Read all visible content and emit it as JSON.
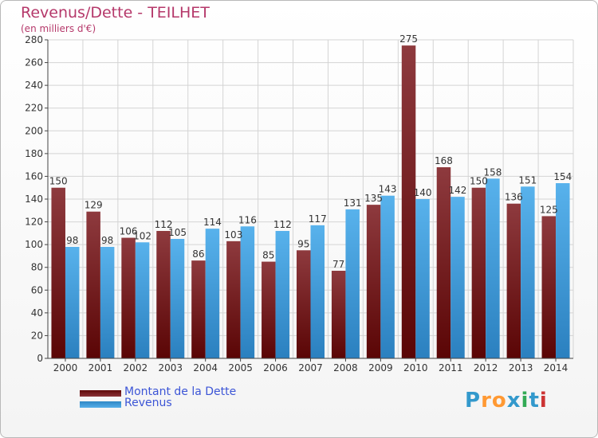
{
  "title": "Revenus/Dette - TEILHET",
  "subtitle": "(en milliers d'€)",
  "legend": {
    "dette_label": "Montant de la Dette",
    "revenus_label": "Revenus"
  },
  "logo": {
    "text": "Proxiti",
    "colors": [
      "#3399cc",
      "#ff9933",
      "#ff9933",
      "#3399cc",
      "#33aa55",
      "#3399cc",
      "#cc3333"
    ]
  },
  "colors": {
    "dette": "#7a1f24",
    "revenus": "#4aa3df",
    "title": "#b5386a",
    "legend_text": "#3c55d6"
  },
  "chart_data": {
    "type": "bar",
    "title": "Revenus/Dette - TEILHET",
    "subtitle": "(en milliers d'€)",
    "categories": [
      "2000",
      "2001",
      "2002",
      "2003",
      "2004",
      "2005",
      "2006",
      "2007",
      "2008",
      "2009",
      "2010",
      "2011",
      "2012",
      "2013",
      "2014"
    ],
    "series": [
      {
        "name": "Montant de la Dette",
        "values": [
          150,
          129,
          106,
          112,
          86,
          103,
          85,
          95,
          77,
          135,
          275,
          168,
          150,
          136,
          125
        ]
      },
      {
        "name": "Revenus",
        "values": [
          98,
          98,
          102,
          105,
          114,
          116,
          112,
          117,
          131,
          143,
          140,
          142,
          158,
          151,
          154
        ]
      }
    ],
    "ylim": [
      0,
      280
    ],
    "yticks": [
      0,
      20,
      40,
      60,
      80,
      100,
      120,
      140,
      160,
      180,
      200,
      220,
      240,
      260,
      280
    ],
    "grid": true,
    "legend_position": "bottom-left"
  }
}
